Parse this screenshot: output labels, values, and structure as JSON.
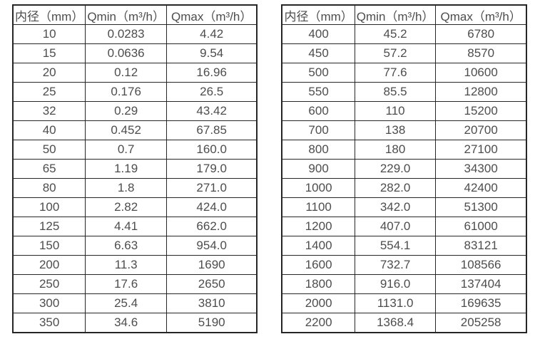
{
  "page": {
    "background_color": "#ffffff",
    "text_color": "#4d4d4d",
    "border_color": "#262626"
  },
  "chart_data": [
    {
      "type": "table",
      "title": "",
      "headers": [
        "内径（mm）",
        "Qmin（m³/h）",
        "Qmax（m³/h）"
      ],
      "rows": [
        [
          "10",
          "0.0283",
          "4.42"
        ],
        [
          "15",
          "0.0636",
          "9.54"
        ],
        [
          "20",
          "0.12",
          "16.96"
        ],
        [
          "25",
          "0.176",
          "26.5"
        ],
        [
          "32",
          "0.29",
          "43.42"
        ],
        [
          "40",
          "0.452",
          "67.85"
        ],
        [
          "50",
          "0.7",
          "160.0"
        ],
        [
          "65",
          "1.19",
          "179.0"
        ],
        [
          "80",
          "1.8",
          "271.0"
        ],
        [
          "100",
          "2.82",
          "424.0"
        ],
        [
          "125",
          "4.41",
          "662.0"
        ],
        [
          "150",
          "6.63",
          "954.0"
        ],
        [
          "200",
          "11.3",
          "1690"
        ],
        [
          "250",
          "17.6",
          "2650"
        ],
        [
          "300",
          "25.4",
          "3810"
        ],
        [
          "350",
          "34.6",
          "5190"
        ]
      ]
    },
    {
      "type": "table",
      "title": "",
      "headers": [
        "内径（mm）",
        "Qmin（m³/h）",
        "Qmax（m³/h）"
      ],
      "rows": [
        [
          "400",
          "45.2",
          "6780"
        ],
        [
          "450",
          "57.2",
          "8570"
        ],
        [
          "500",
          "77.6",
          "10600"
        ],
        [
          "550",
          "85.5",
          "12800"
        ],
        [
          "600",
          "110",
          "15200"
        ],
        [
          "700",
          "138",
          "20700"
        ],
        [
          "800",
          "180",
          "27100"
        ],
        [
          "900",
          "229.0",
          "34300"
        ],
        [
          "1000",
          "282.0",
          "42400"
        ],
        [
          "1100",
          "342.0",
          "51300"
        ],
        [
          "1200",
          "407.0",
          "61000"
        ],
        [
          "1400",
          "554.1",
          "83121"
        ],
        [
          "1600",
          "732.7",
          "108566"
        ],
        [
          "1800",
          "916.0",
          "137404"
        ],
        [
          "2000",
          "1131.0",
          "169635"
        ],
        [
          "2200",
          "1368.4",
          "205258"
        ]
      ]
    }
  ]
}
